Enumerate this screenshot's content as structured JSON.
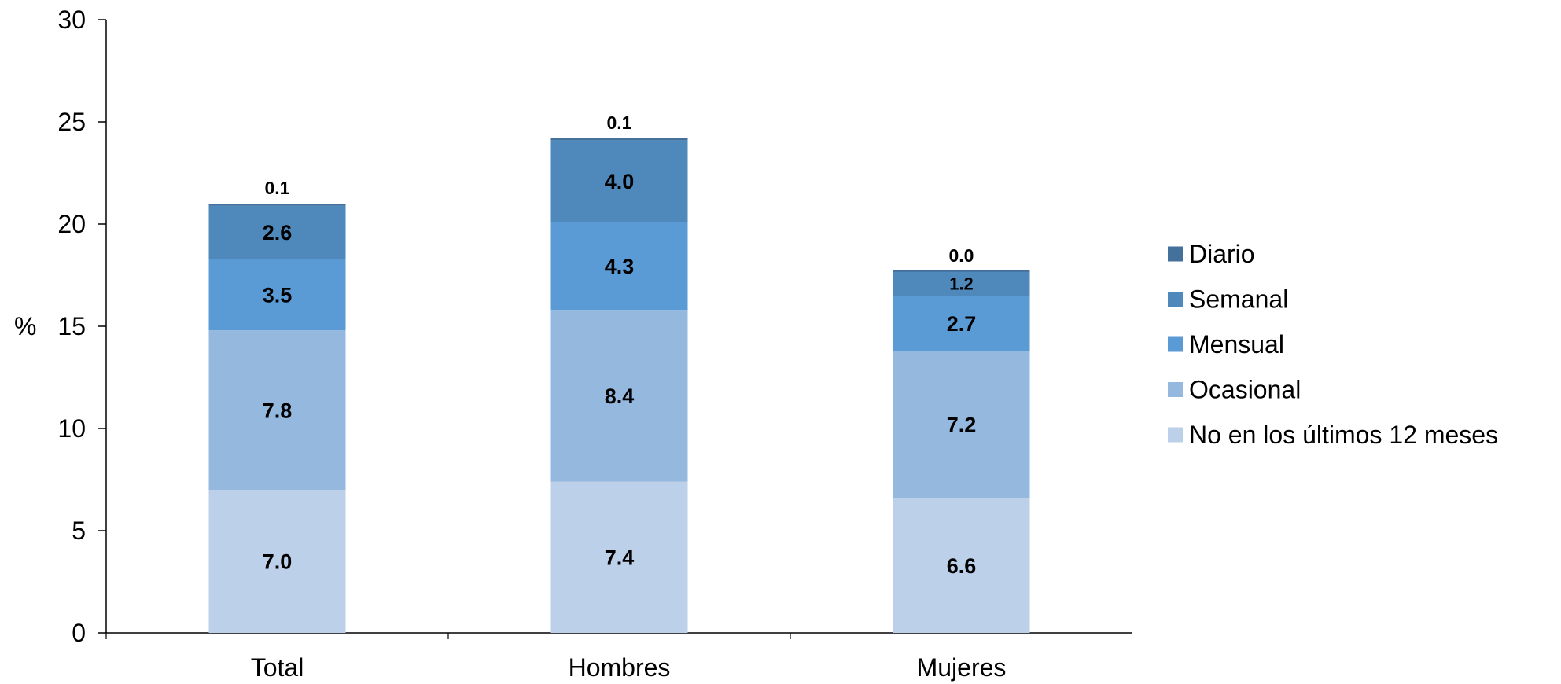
{
  "chart_data": {
    "type": "bar",
    "stacked": true,
    "categories": [
      "Total",
      "Hombres",
      "Mujeres"
    ],
    "series": [
      {
        "name": "No en los últimos 12 meses",
        "values": [
          7.0,
          7.4,
          6.6
        ],
        "labels": [
          "7.0",
          "7.4",
          "6.6"
        ],
        "color": "#BDD0E9"
      },
      {
        "name": "Ocasional",
        "values": [
          7.8,
          8.4,
          7.2
        ],
        "labels": [
          "7.8",
          "8.4",
          "7.2"
        ],
        "color": "#95B8DF"
      },
      {
        "name": "Mensual",
        "values": [
          3.5,
          4.3,
          2.7
        ],
        "labels": [
          "3.5",
          "4.3",
          "2.7"
        ],
        "color": "#5B9BD5"
      },
      {
        "name": "Semanal",
        "values": [
          2.6,
          4.0,
          1.2
        ],
        "labels": [
          "2.6",
          "4.0",
          "1.2"
        ],
        "color": "#4F88BB"
      },
      {
        "name": "Diario",
        "values": [
          0.1,
          0.1,
          0.0
        ],
        "labels": [
          "0.1",
          "0.1",
          "0.0"
        ],
        "color": "#44719C"
      }
    ],
    "legend_order": [
      "Diario",
      "Semanal",
      "Mensual",
      "Ocasional",
      "No en los últimos 12 meses"
    ],
    "ylabel": "%",
    "ylim": [
      0,
      30
    ],
    "yticks": [
      "0",
      "5",
      "10",
      "15",
      "20",
      "25",
      "30"
    ],
    "grid": false,
    "legend_position": "right"
  }
}
